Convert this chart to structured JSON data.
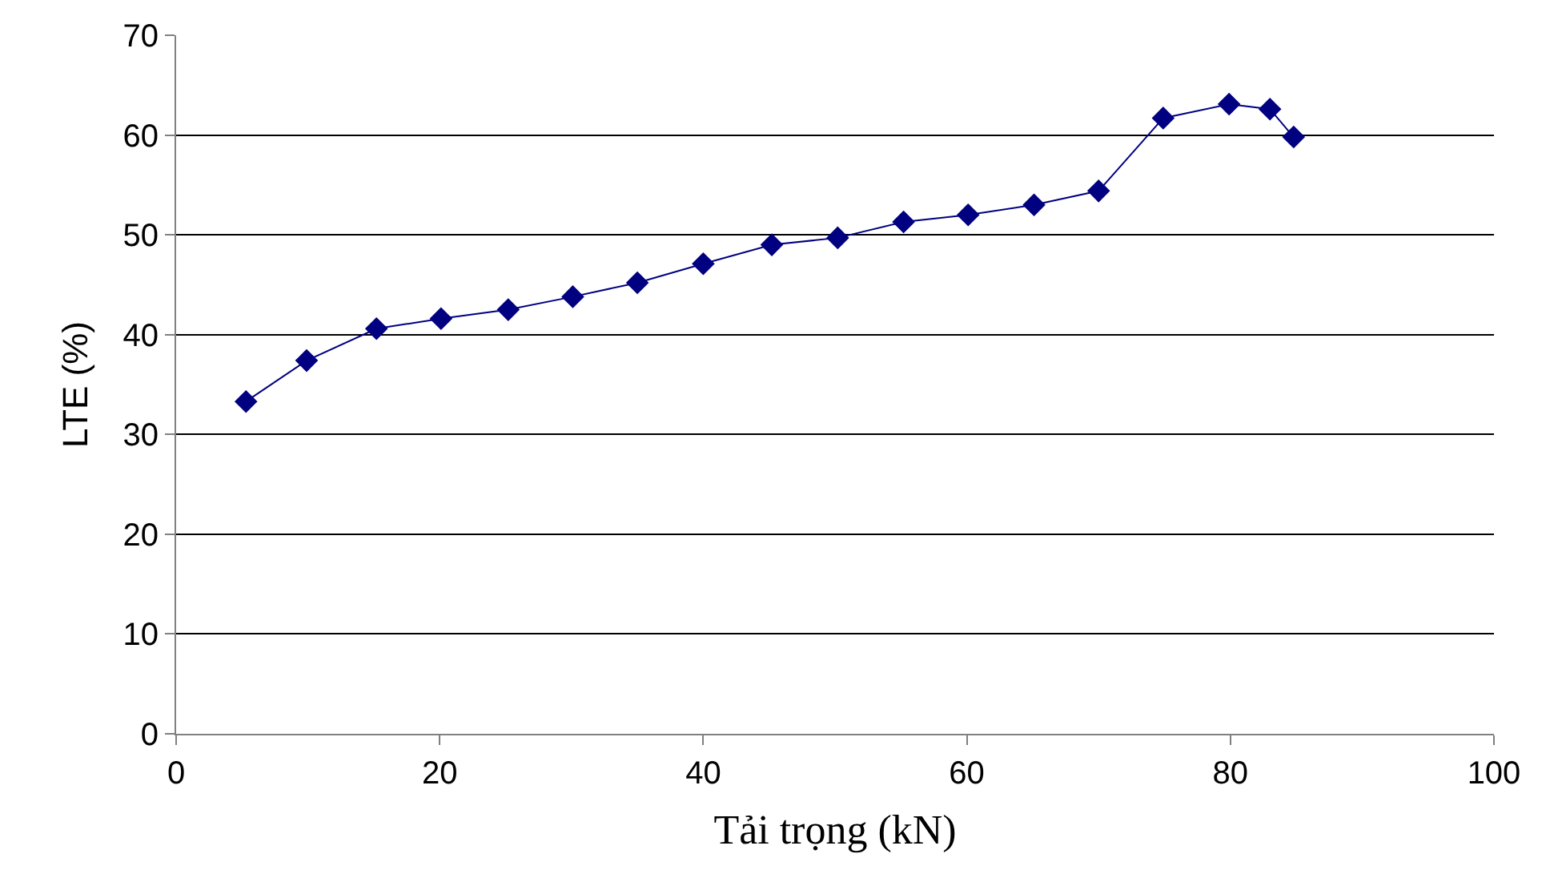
{
  "chart_data": {
    "type": "line",
    "xlabel": "Tải trọng (kN)",
    "ylabel": "LTE (%)",
    "series": [
      {
        "color": "#000080",
        "x": [
          5.3,
          9.9,
          15.2,
          20.1,
          25.2,
          30.1,
          35.0,
          40.0,
          45.2,
          50.2,
          55.2,
          60.1,
          65.1,
          70.0,
          74.9,
          79.9,
          83.0,
          84.8
        ],
        "values": [
          33.3,
          37.4,
          40.6,
          41.6,
          42.5,
          43.8,
          45.2,
          47.1,
          49.0,
          49.7,
          51.3,
          52.0,
          53.0,
          54.4,
          61.7,
          63.1,
          62.6,
          59.8
        ]
      }
    ],
    "xlim": [
      0,
      100
    ],
    "xticks": [
      0,
      20,
      40,
      60,
      80,
      100
    ],
    "ylim": [
      0,
      70
    ],
    "yticks": [
      0,
      10,
      20,
      30,
      40,
      50,
      60,
      70
    ],
    "grid": "y",
    "legend": false,
    "marker": "diamond",
    "line_style": "solid"
  }
}
